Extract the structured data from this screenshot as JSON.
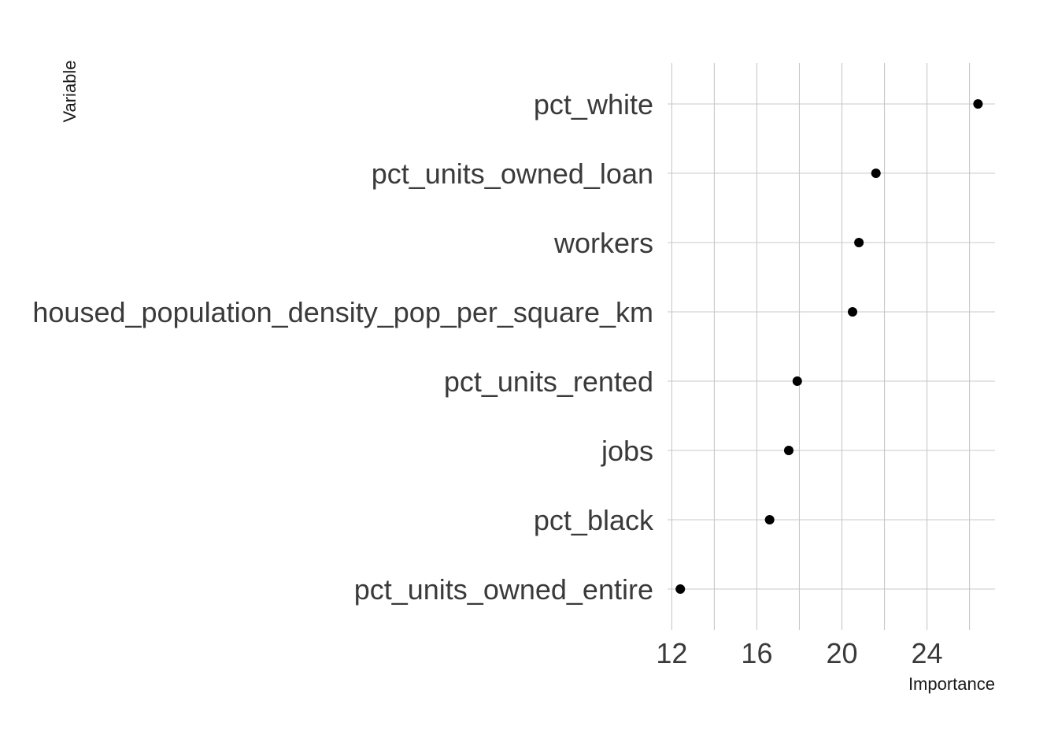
{
  "chart_data": {
    "type": "scatter",
    "xlabel": "Importance",
    "ylabel": "Variable",
    "xlim": [
      11.8,
      27.2
    ],
    "x_ticks": [
      12,
      16,
      20,
      24
    ],
    "x_minor_grid": [
      14,
      18,
      22,
      26
    ],
    "grid": true,
    "legend": "none",
    "categories": [
      "pct_white",
      "pct_units_owned_loan",
      "workers",
      "housed_population_density_pop_per_square_km",
      "pct_units_rented",
      "jobs",
      "pct_black",
      "pct_units_owned_entire"
    ],
    "values": [
      26.4,
      21.6,
      20.8,
      20.5,
      17.9,
      17.5,
      16.6,
      12.4
    ],
    "colors": {
      "point": "#000000",
      "grid": "#c8c8c8",
      "text": "#3a3a3a"
    }
  }
}
